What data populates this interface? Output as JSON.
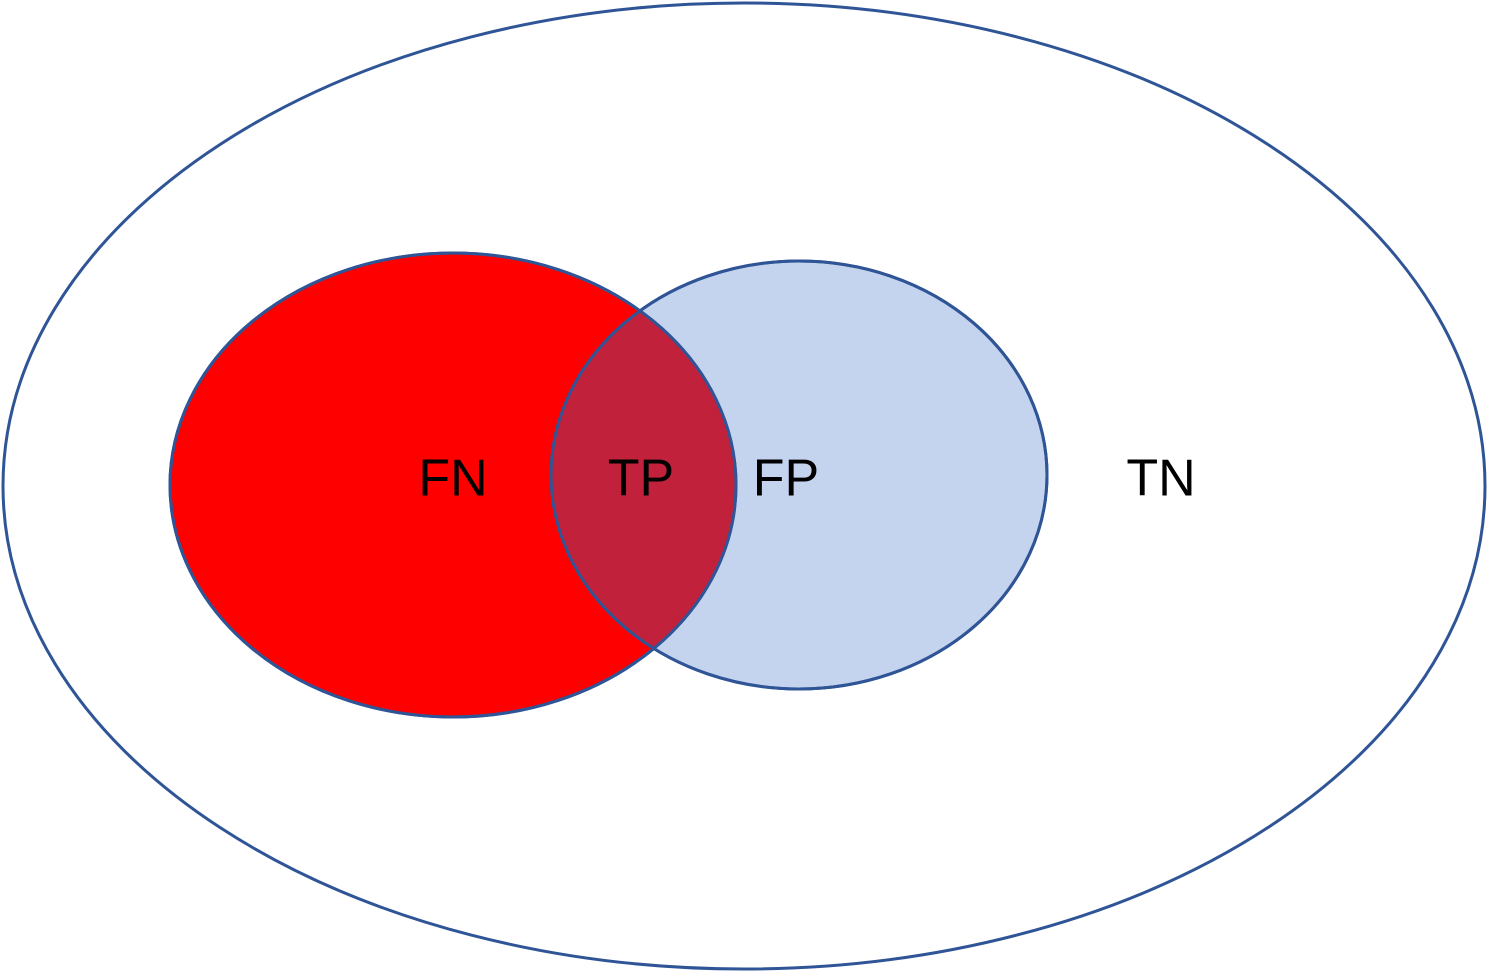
{
  "diagram": {
    "type": "venn",
    "labels": {
      "fn": "FN",
      "tp": "TP",
      "fp": "FP",
      "tn": "TN"
    },
    "colors": {
      "outline": "#2F5597",
      "universe_fill": "#FFFFFF",
      "fn_fill": "#FF0000",
      "fp_fill": "#C5D4EE",
      "tp_fill": "#C2213B",
      "text": "#000000"
    }
  }
}
